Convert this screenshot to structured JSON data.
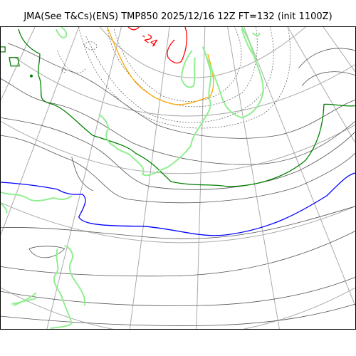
{
  "title": "JMA(See T&Cs)(ENS) TMP850 2025/12/16 12Z FT=132 (init 1100Z)",
  "contour_label": "-24",
  "colors": {
    "coastline": "#90ee90",
    "graticule": "#aaaaaa",
    "isotherm": "#555555",
    "minus24": "#ff0000",
    "minus18": "#ffa500",
    "minus6": "#008000",
    "zero": "#0000ff"
  },
  "icons": [
    "map-frame"
  ]
}
